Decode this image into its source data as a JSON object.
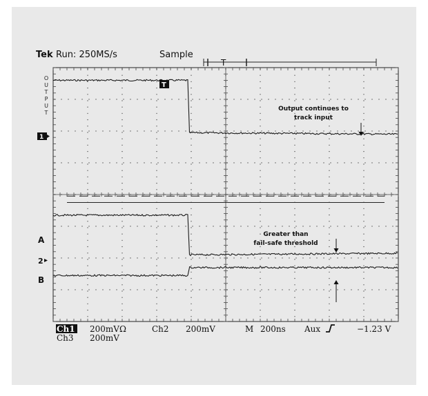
{
  "header": {
    "brand": "Tek",
    "run": "Run: 250MS/s",
    "mode": "Sample",
    "trigger_label": "T"
  },
  "side_label_letters": [
    "O",
    "U",
    "T",
    "P",
    "U",
    "T"
  ],
  "markers": {
    "ch1_ground": "1",
    "ch2_ground": "2",
    "trigger_marker": "T",
    "line_a": "A",
    "line_b": "B"
  },
  "annotations": {
    "output_line1": "Output continues to",
    "output_line2": "track input",
    "threshold_line1": "Greater than",
    "threshold_line2": "fail-safe threshold"
  },
  "readout": {
    "ch1_label": "Ch1",
    "ch1_scale": "200mVΩ",
    "ch2_label": "Ch2",
    "ch2_scale": "200mV",
    "time_label": "M",
    "time_scale": "200ns",
    "trig_source": "Aux",
    "trig_level": "−1.23 V",
    "ch3_label": "Ch3",
    "ch3_scale": "200mV"
  },
  "chart_data": {
    "type": "line",
    "x_unit": "divisions",
    "y_unit": "divisions",
    "grid": true,
    "xlim": [
      0,
      10
    ],
    "ylim": [
      -4,
      4
    ],
    "series": [
      {
        "x": [
          0,
          3.9,
          3.95,
          10
        ],
        "y": [
          3.6,
          3.6,
          1.95,
          1.9
        ]
      },
      {
        "x": [
          0,
          3.9,
          3.95,
          10
        ],
        "y": [
          -0.65,
          -0.65,
          -1.9,
          -1.85
        ]
      },
      {
        "x": [
          0,
          3.9,
          3.95,
          10
        ],
        "y": [
          -2.55,
          -2.55,
          -2.3,
          -2.3
        ]
      }
    ],
    "dashed_levels": [
      -0.05,
      -0.25
    ]
  }
}
